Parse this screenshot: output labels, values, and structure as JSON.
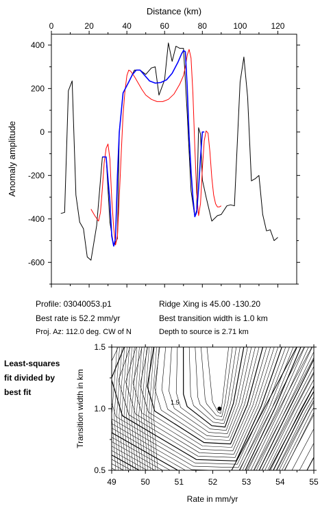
{
  "chart_data": [
    {
      "type": "line",
      "xlabel": "Distance (km)",
      "ylabel": "Anomaly amplitude",
      "xlim": [
        0,
        130
      ],
      "ylim": [
        -700,
        450
      ],
      "x_ticks": [
        0,
        20,
        40,
        60,
        80,
        100,
        120
      ],
      "y_ticks": [
        -600,
        -400,
        -200,
        0,
        200,
        400
      ],
      "series": [
        {
          "color": "#000000",
          "points": [
            [
              5,
              -375
            ],
            [
              7,
              -370
            ],
            [
              9,
              190
            ],
            [
              11,
              235
            ],
            [
              13,
              -290
            ],
            [
              15,
              -415
            ],
            [
              17,
              -445
            ],
            [
              19,
              -575
            ],
            [
              21,
              -590
            ],
            [
              24,
              -430
            ],
            [
              27,
              -115
            ],
            [
              29,
              -115
            ],
            [
              31,
              -415
            ],
            [
              33,
              -525
            ],
            [
              35,
              -490
            ],
            [
              36,
              0
            ],
            [
              38,
              180
            ],
            [
              41,
              230
            ],
            [
              44,
              285
            ],
            [
              47,
              285
            ],
            [
              50,
              265
            ],
            [
              53,
              295
            ],
            [
              55,
              300
            ],
            [
              57,
              170
            ],
            [
              60,
              240
            ],
            [
              62,
              410
            ],
            [
              64,
              325
            ],
            [
              66,
              395
            ],
            [
              68,
              385
            ],
            [
              70,
              385
            ],
            [
              71,
              235
            ],
            [
              72,
              80
            ],
            [
              74,
              -270
            ],
            [
              76,
              -390
            ],
            [
              77,
              -360
            ],
            [
              78,
              20
            ],
            [
              79,
              -10
            ],
            [
              80,
              -220
            ],
            [
              82,
              -300
            ],
            [
              85,
              -410
            ],
            [
              88,
              -385
            ],
            [
              90,
              -380
            ],
            [
              93,
              -340
            ],
            [
              95,
              -335
            ],
            [
              97,
              -340
            ],
            [
              100,
              230
            ],
            [
              102,
              345
            ],
            [
              104,
              160
            ],
            [
              106,
              -225
            ],
            [
              108,
              -215
            ],
            [
              110,
              -200
            ],
            [
              112,
              -380
            ],
            [
              114,
              -455
            ],
            [
              116,
              -450
            ],
            [
              118,
              -500
            ],
            [
              120,
              -485
            ]
          ]
        },
        {
          "color": "#ff0000",
          "points": [
            [
              21,
              -355
            ],
            [
              23,
              -385
            ],
            [
              25,
              -410
            ],
            [
              26,
              -370
            ],
            [
              27,
              -260
            ],
            [
              28,
              -140
            ],
            [
              29,
              -75
            ],
            [
              30,
              -55
            ],
            [
              31,
              -125
            ],
            [
              32,
              -310
            ],
            [
              33,
              -440
            ],
            [
              34,
              -520
            ],
            [
              35,
              -480
            ],
            [
              36,
              -300
            ],
            [
              37,
              -100
            ],
            [
              38,
              80
            ],
            [
              39,
              190
            ],
            [
              40,
              260
            ],
            [
              41,
              285
            ],
            [
              42,
              280
            ],
            [
              44,
              255
            ],
            [
              46,
              225
            ],
            [
              48,
              195
            ],
            [
              50,
              170
            ],
            [
              53,
              150
            ],
            [
              56,
              140
            ],
            [
              59,
              140
            ],
            [
              62,
              150
            ],
            [
              65,
              175
            ],
            [
              68,
              220
            ],
            [
              70,
              260
            ],
            [
              71,
              300
            ],
            [
              72,
              355
            ],
            [
              73,
              380
            ],
            [
              74,
              340
            ],
            [
              75,
              180
            ],
            [
              76,
              -70
            ],
            [
              77,
              -280
            ],
            [
              78,
              -385
            ],
            [
              79,
              -330
            ],
            [
              80,
              -170
            ],
            [
              81,
              -40
            ],
            [
              82,
              5
            ],
            [
              83,
              -5
            ],
            [
              84,
              -90
            ],
            [
              85,
              -210
            ],
            [
              86,
              -290
            ],
            [
              87,
              -330
            ],
            [
              88,
              -345
            ],
            [
              89,
              -345
            ],
            [
              90,
              -340
            ]
          ]
        },
        {
          "color": "#0000ff",
          "points": [
            [
              27,
              -115
            ],
            [
              29,
              -115
            ],
            [
              31,
              -320
            ],
            [
              32,
              -480
            ],
            [
              33,
              -525
            ],
            [
              34,
              -490
            ],
            [
              35,
              -200
            ],
            [
              36,
              0
            ],
            [
              38,
              180
            ],
            [
              41,
              230
            ],
            [
              43,
              265
            ],
            [
              45,
              285
            ],
            [
              47,
              285
            ],
            [
              49,
              265
            ],
            [
              52,
              235
            ],
            [
              55,
              225
            ],
            [
              58,
              228
            ],
            [
              61,
              240
            ],
            [
              64,
              270
            ],
            [
              67,
              320
            ],
            [
              69,
              360
            ],
            [
              70,
              375
            ],
            [
              71,
              370
            ],
            [
              72,
              200
            ],
            [
              73,
              -20
            ],
            [
              74,
              -180
            ],
            [
              75,
              -300
            ],
            [
              76,
              -390
            ],
            [
              77,
              -370
            ],
            [
              78,
              -260
            ],
            [
              79,
              -120
            ],
            [
              80,
              0
            ],
            [
              81,
              0
            ]
          ]
        }
      ]
    },
    {
      "type": "contour",
      "xlabel": "Rate in mm/yr",
      "ylabel": "Transition width in km",
      "xlim": [
        49,
        55
      ],
      "ylim": [
        0.5,
        1.5
      ],
      "x_ticks": [
        "49",
        "50",
        "51",
        "52",
        "53",
        "54",
        "55"
      ],
      "y_ticks": [
        "0.5",
        "1.0",
        "1.5"
      ],
      "contour_label": "1.5",
      "best_fit": {
        "rate": 52.2,
        "width": 1.0
      }
    }
  ],
  "info": {
    "profile": "Profile: 03040053.p1",
    "ridge_xing": "Ridge Xing is 45.00 -130.20",
    "best_rate": "Best rate is 52.2 mm/yr",
    "best_width": "Best transition width is 1.0 km",
    "proj_az": "Proj. Az: 112.0 deg. CW of N",
    "depth": "Depth to source is   2.71 km"
  },
  "side_note": [
    "Least-squares",
    "fit divided by",
    "best fit"
  ]
}
